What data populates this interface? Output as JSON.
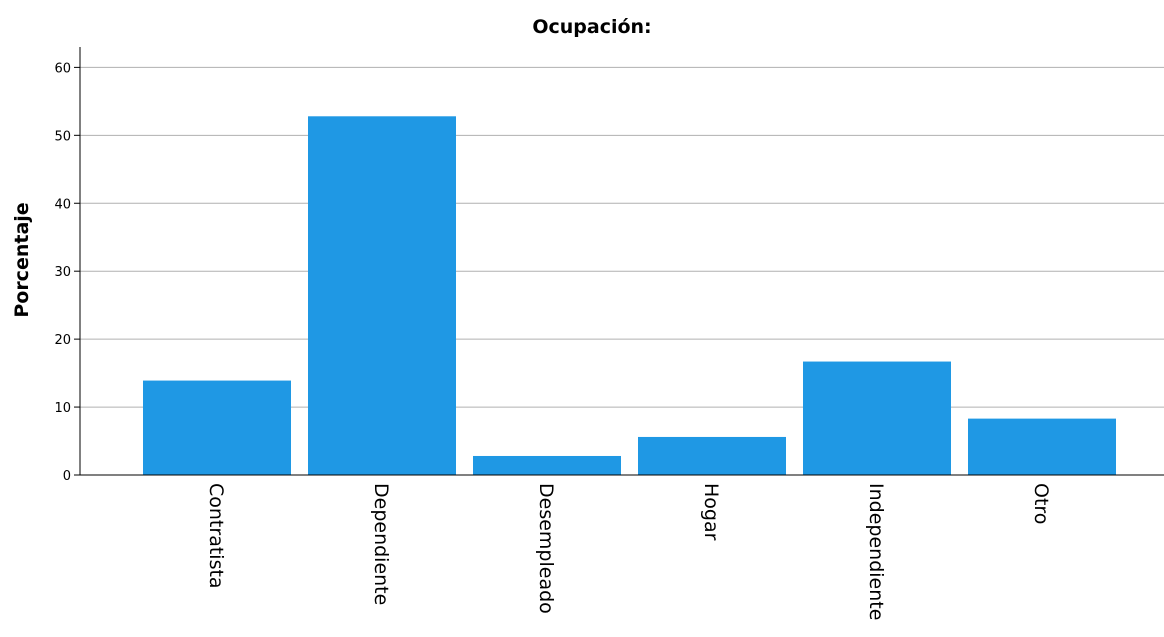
{
  "chart_data": {
    "type": "bar",
    "title": "Ocupación:",
    "xlabel": "",
    "ylabel": "Porcentaje",
    "categories": [
      "Contratista",
      "Dependiente",
      "Desempleado",
      "Hogar",
      "Independiente",
      "Otro"
    ],
    "values": [
      13.9,
      52.8,
      2.8,
      5.6,
      16.7,
      8.3
    ],
    "ylim": [
      0,
      63
    ],
    "yticks": [
      0,
      10,
      20,
      30,
      40,
      50,
      60
    ],
    "grid": true,
    "bar_color": "#1f98e4",
    "grid_color": "#b0b0b0"
  }
}
